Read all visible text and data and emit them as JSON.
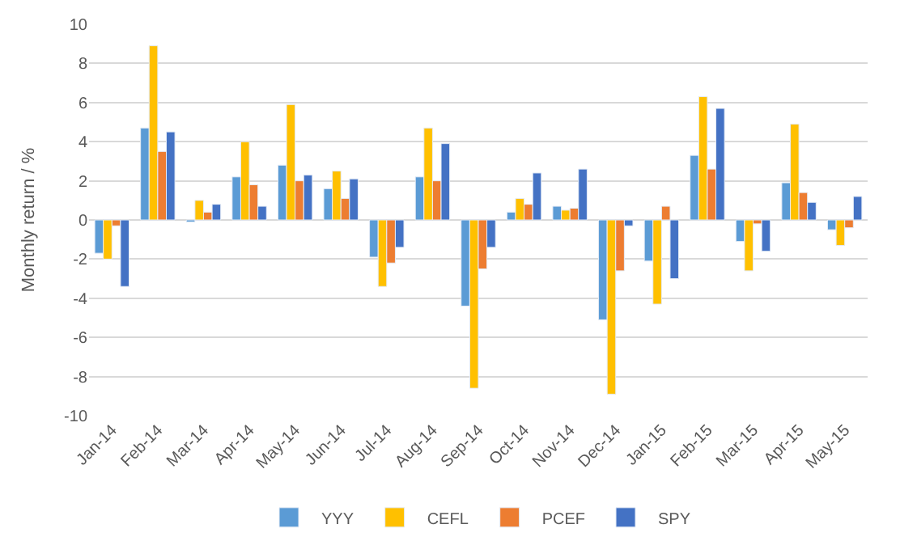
{
  "chart_data": {
    "type": "bar",
    "ylabel": "Monthly return / %",
    "categories": [
      "Jan-14",
      "Feb-14",
      "Mar-14",
      "Apr-14",
      "May-14",
      "Jun-14",
      "Jul-14",
      "Aug-14",
      "Sep-14",
      "Oct-14",
      "Nov-14",
      "Dec-14",
      "Jan-15",
      "Feb-15",
      "Mar-15",
      "Apr-15",
      "May-15"
    ],
    "series": [
      {
        "name": "YYY",
        "color": "#5b9bd5",
        "values": [
          -1.7,
          4.7,
          -0.1,
          2.2,
          2.8,
          1.6,
          -1.9,
          2.2,
          -4.4,
          0.4,
          0.7,
          -5.1,
          -2.1,
          3.3,
          -1.1,
          1.9,
          -0.5
        ]
      },
      {
        "name": "CEFL",
        "color": "#ffc000",
        "values": [
          -2.0,
          8.9,
          1.0,
          4.0,
          5.9,
          2.5,
          -3.4,
          4.7,
          -8.6,
          1.1,
          0.5,
          -8.9,
          -4.3,
          6.3,
          -2.6,
          4.9,
          -1.3
        ]
      },
      {
        "name": "PCEF",
        "color": "#ed7d31",
        "values": [
          -0.3,
          3.5,
          0.4,
          1.8,
          2.0,
          1.1,
          -2.2,
          2.0,
          -2.5,
          0.8,
          0.6,
          -2.6,
          0.7,
          2.6,
          -0.2,
          1.4,
          -0.4
        ]
      },
      {
        "name": "SPY",
        "color": "#4472c4",
        "values": [
          -3.4,
          4.5,
          0.8,
          0.7,
          2.3,
          2.1,
          -1.4,
          3.9,
          -1.4,
          2.4,
          2.6,
          -0.3,
          -3.0,
          5.7,
          -1.6,
          0.9,
          1.2
        ]
      }
    ],
    "ylim": [
      -10,
      10
    ],
    "yticks": [
      -10,
      -8,
      -6,
      -4,
      -2,
      0,
      2,
      4,
      6,
      8,
      10
    ],
    "grid": "y",
    "legend": "bottom"
  }
}
